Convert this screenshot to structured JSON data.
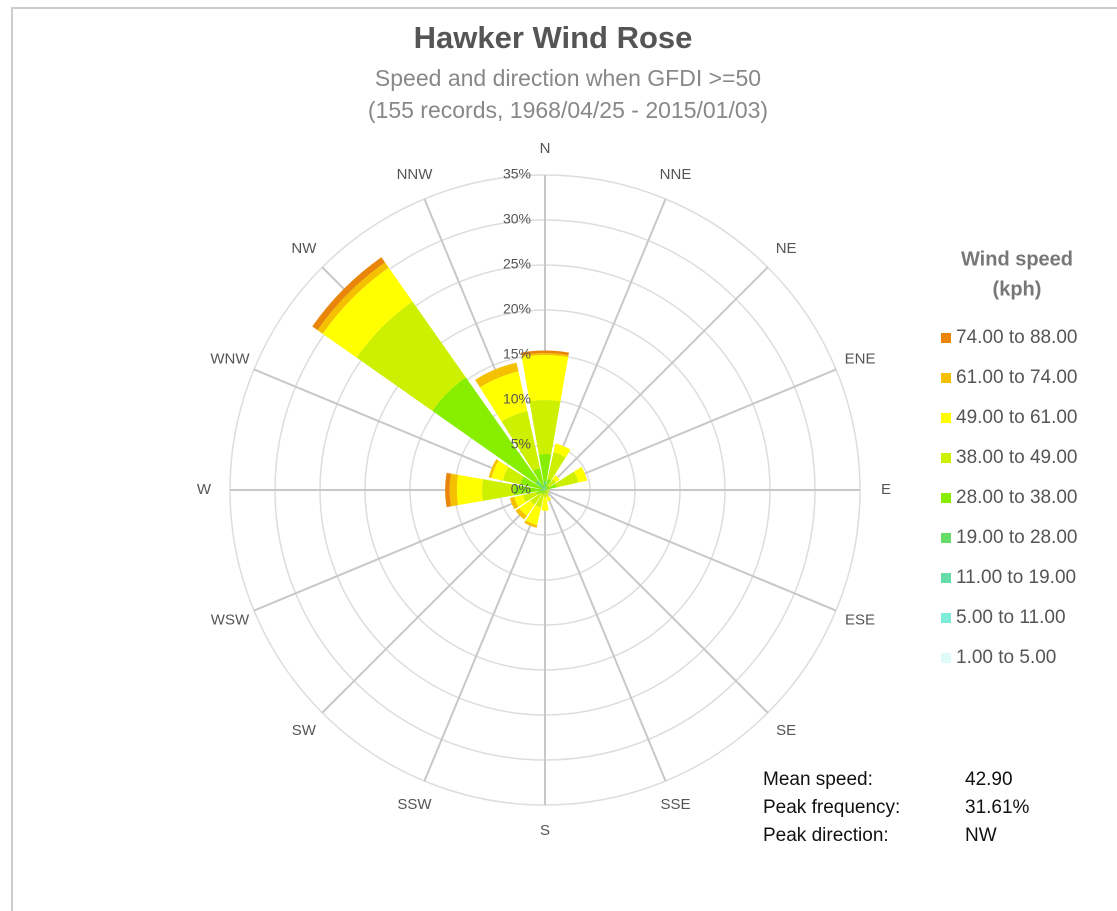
{
  "chart_data": {
    "type": "windrose",
    "title": "Hawker Wind Rose",
    "subtitle": [
      "Speed and direction when GFDI >=50",
      "(155 records, 1968/04/25 - 2015/01/03)"
    ],
    "categories": [
      "N",
      "NNE",
      "NE",
      "ENE",
      "E",
      "ESE",
      "SE",
      "SSE",
      "S",
      "SSW",
      "SW",
      "WSW",
      "W",
      "WNW",
      "NW",
      "NNW"
    ],
    "rlim": [
      0,
      35
    ],
    "rticks": [
      {
        "value": 0,
        "label": "0%"
      },
      {
        "value": 5,
        "label": "5%"
      },
      {
        "value": 10,
        "label": "10%"
      },
      {
        "value": 15,
        "label": "15%"
      },
      {
        "value": 20,
        "label": "20%"
      },
      {
        "value": 25,
        "label": "25%"
      },
      {
        "value": 30,
        "label": "30%"
      },
      {
        "value": 35,
        "label": "35%"
      }
    ],
    "legend_title": [
      "Wind speed",
      "(kph)"
    ],
    "series": [
      {
        "name": "1.00 to 5.00",
        "color": "#ddfbfb",
        "values": [
          0,
          0,
          0,
          0,
          0,
          0,
          0,
          0,
          0,
          0,
          0,
          0,
          0,
          0,
          0,
          0
        ]
      },
      {
        "name": "5.00 to 11.00",
        "color": "#7eecd8",
        "values": [
          0,
          0,
          0,
          0,
          0,
          0,
          0,
          0,
          0,
          0,
          0,
          0,
          0,
          0,
          0,
          0
        ]
      },
      {
        "name": "11.00 to 19.00",
        "color": "#66dda8",
        "values": [
          0,
          0,
          0,
          0,
          0,
          0,
          0,
          0,
          0,
          0,
          0,
          0,
          0,
          0,
          0.3,
          0
        ]
      },
      {
        "name": "19.00 to 28.00",
        "color": "#66dd66",
        "values": [
          1.0,
          0.3,
          0,
          0.3,
          0,
          0,
          0,
          0,
          0,
          0,
          0,
          0,
          0.5,
          0.3,
          1.0,
          0.5
        ]
      },
      {
        "name": "28.00 to 38.00",
        "color": "#88ee00",
        "values": [
          3.0,
          1.0,
          0.5,
          1.0,
          0.2,
          0.2,
          0.2,
          0.3,
          0.3,
          0.5,
          0.5,
          1.0,
          3.0,
          2.5,
          14.0,
          2.0
        ]
      },
      {
        "name": "38.00 to 49.00",
        "color": "#ccf000",
        "values": [
          6.0,
          3.0,
          1.0,
          2.5,
          0.3,
          0.3,
          0.3,
          0.5,
          0.5,
          1.5,
          1.5,
          1.5,
          3.5,
          2.0,
          10.3,
          6.5
        ]
      },
      {
        "name": "49.00 to 61.00",
        "color": "#ffff00",
        "values": [
          5.0,
          1.0,
          0.5,
          1.0,
          0,
          0,
          0,
          0.5,
          1.5,
          2.0,
          1.5,
          1.0,
          2.8,
          1.3,
          4.6,
          4.5
        ]
      },
      {
        "name": "61.00 to 74.00",
        "color": "#f5c000",
        "values": [
          0.2,
          0,
          0,
          0,
          0,
          0,
          0,
          0,
          0,
          0.3,
          0.5,
          0.5,
          0.8,
          0.3,
          0.7,
          1.0
        ]
      },
      {
        "name": "74.00 to 88.00",
        "color": "#e8850a",
        "values": [
          0.3,
          0,
          0,
          0,
          0,
          0,
          0,
          0,
          0,
          0,
          0,
          0,
          0.5,
          0,
          0.71,
          0
        ]
      }
    ],
    "stats": [
      {
        "label": "Mean speed:",
        "value": "42.90"
      },
      {
        "label": "Peak frequency:",
        "value": "31.61%"
      },
      {
        "label": "Peak direction:",
        "value": "NW"
      }
    ]
  }
}
